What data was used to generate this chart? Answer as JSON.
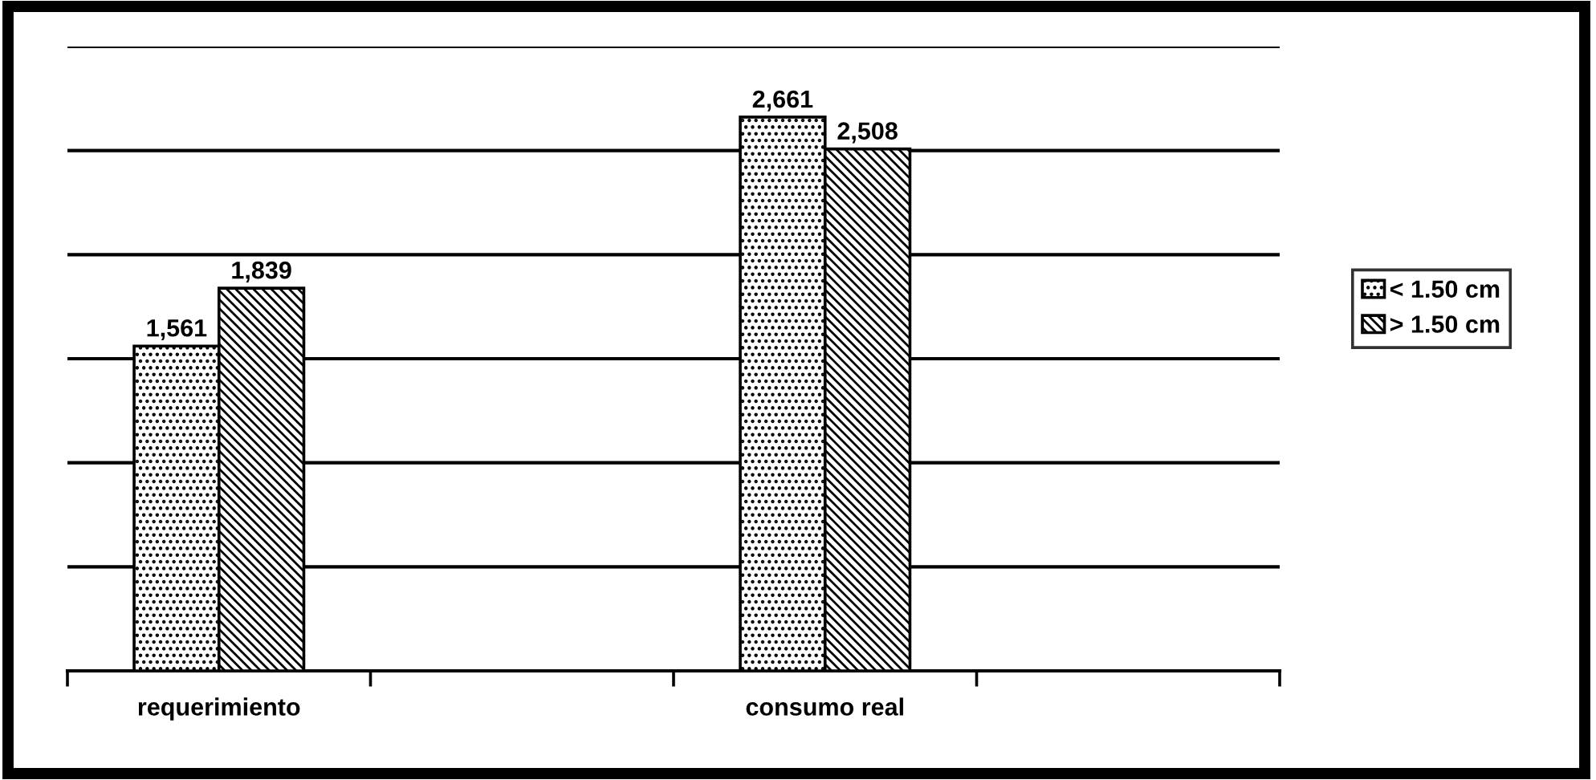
{
  "chart_data": {
    "type": "bar",
    "categories": [
      "requerimiento",
      null,
      "consumo real",
      null
    ],
    "series": [
      {
        "name": "< 1.50 cm",
        "color": "#000000",
        "values": [
          1561,
          null,
          2661,
          null
        ],
        "value_labels": [
          "1,561",
          null,
          "2,661",
          null
        ]
      },
      {
        "name": "> 1.50 cm",
        "color": "#000000",
        "values": [
          1839,
          null,
          2508,
          null
        ],
        "value_labels": [
          "1,839",
          null,
          "2,508",
          null
        ]
      }
    ],
    "tick_labels": "x",
    "grid": "y",
    "legend": "right"
  }
}
